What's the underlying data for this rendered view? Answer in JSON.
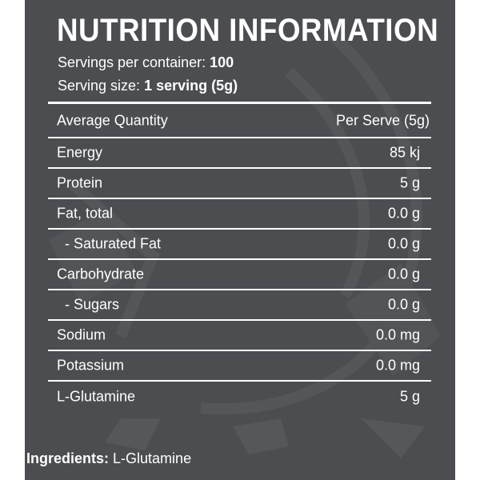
{
  "title": "NUTRITION INFORMATION",
  "servings": {
    "per_container_label": "Servings per container:",
    "per_container_value": "100",
    "size_label": "Serving size:",
    "size_value": "1 serving (5g)"
  },
  "table": {
    "header": {
      "name": "Average Quantity",
      "value": "Per Serve (5g)"
    },
    "rows": [
      {
        "name": "Energy",
        "value": "85 kj"
      },
      {
        "name": "Protein",
        "value": "5 g"
      },
      {
        "name": "Fat, total",
        "value": "0.0 g"
      },
      {
        "name": "- Saturated Fat",
        "value": "0.0 g"
      },
      {
        "name": "Carbohydrate",
        "value": "0.0 g"
      },
      {
        "name": "- Sugars",
        "value": "0.0 g"
      },
      {
        "name": "Sodium",
        "value": "0.0 mg"
      },
      {
        "name": "Potassium",
        "value": "0.0 mg"
      },
      {
        "name": "L-Glutamine",
        "value": "5 g"
      }
    ]
  },
  "ingredients": {
    "label": "Ingredients:",
    "value": "L-Glutamine"
  },
  "colors": {
    "panel": "#4b4d51",
    "text": "#ffffff"
  }
}
